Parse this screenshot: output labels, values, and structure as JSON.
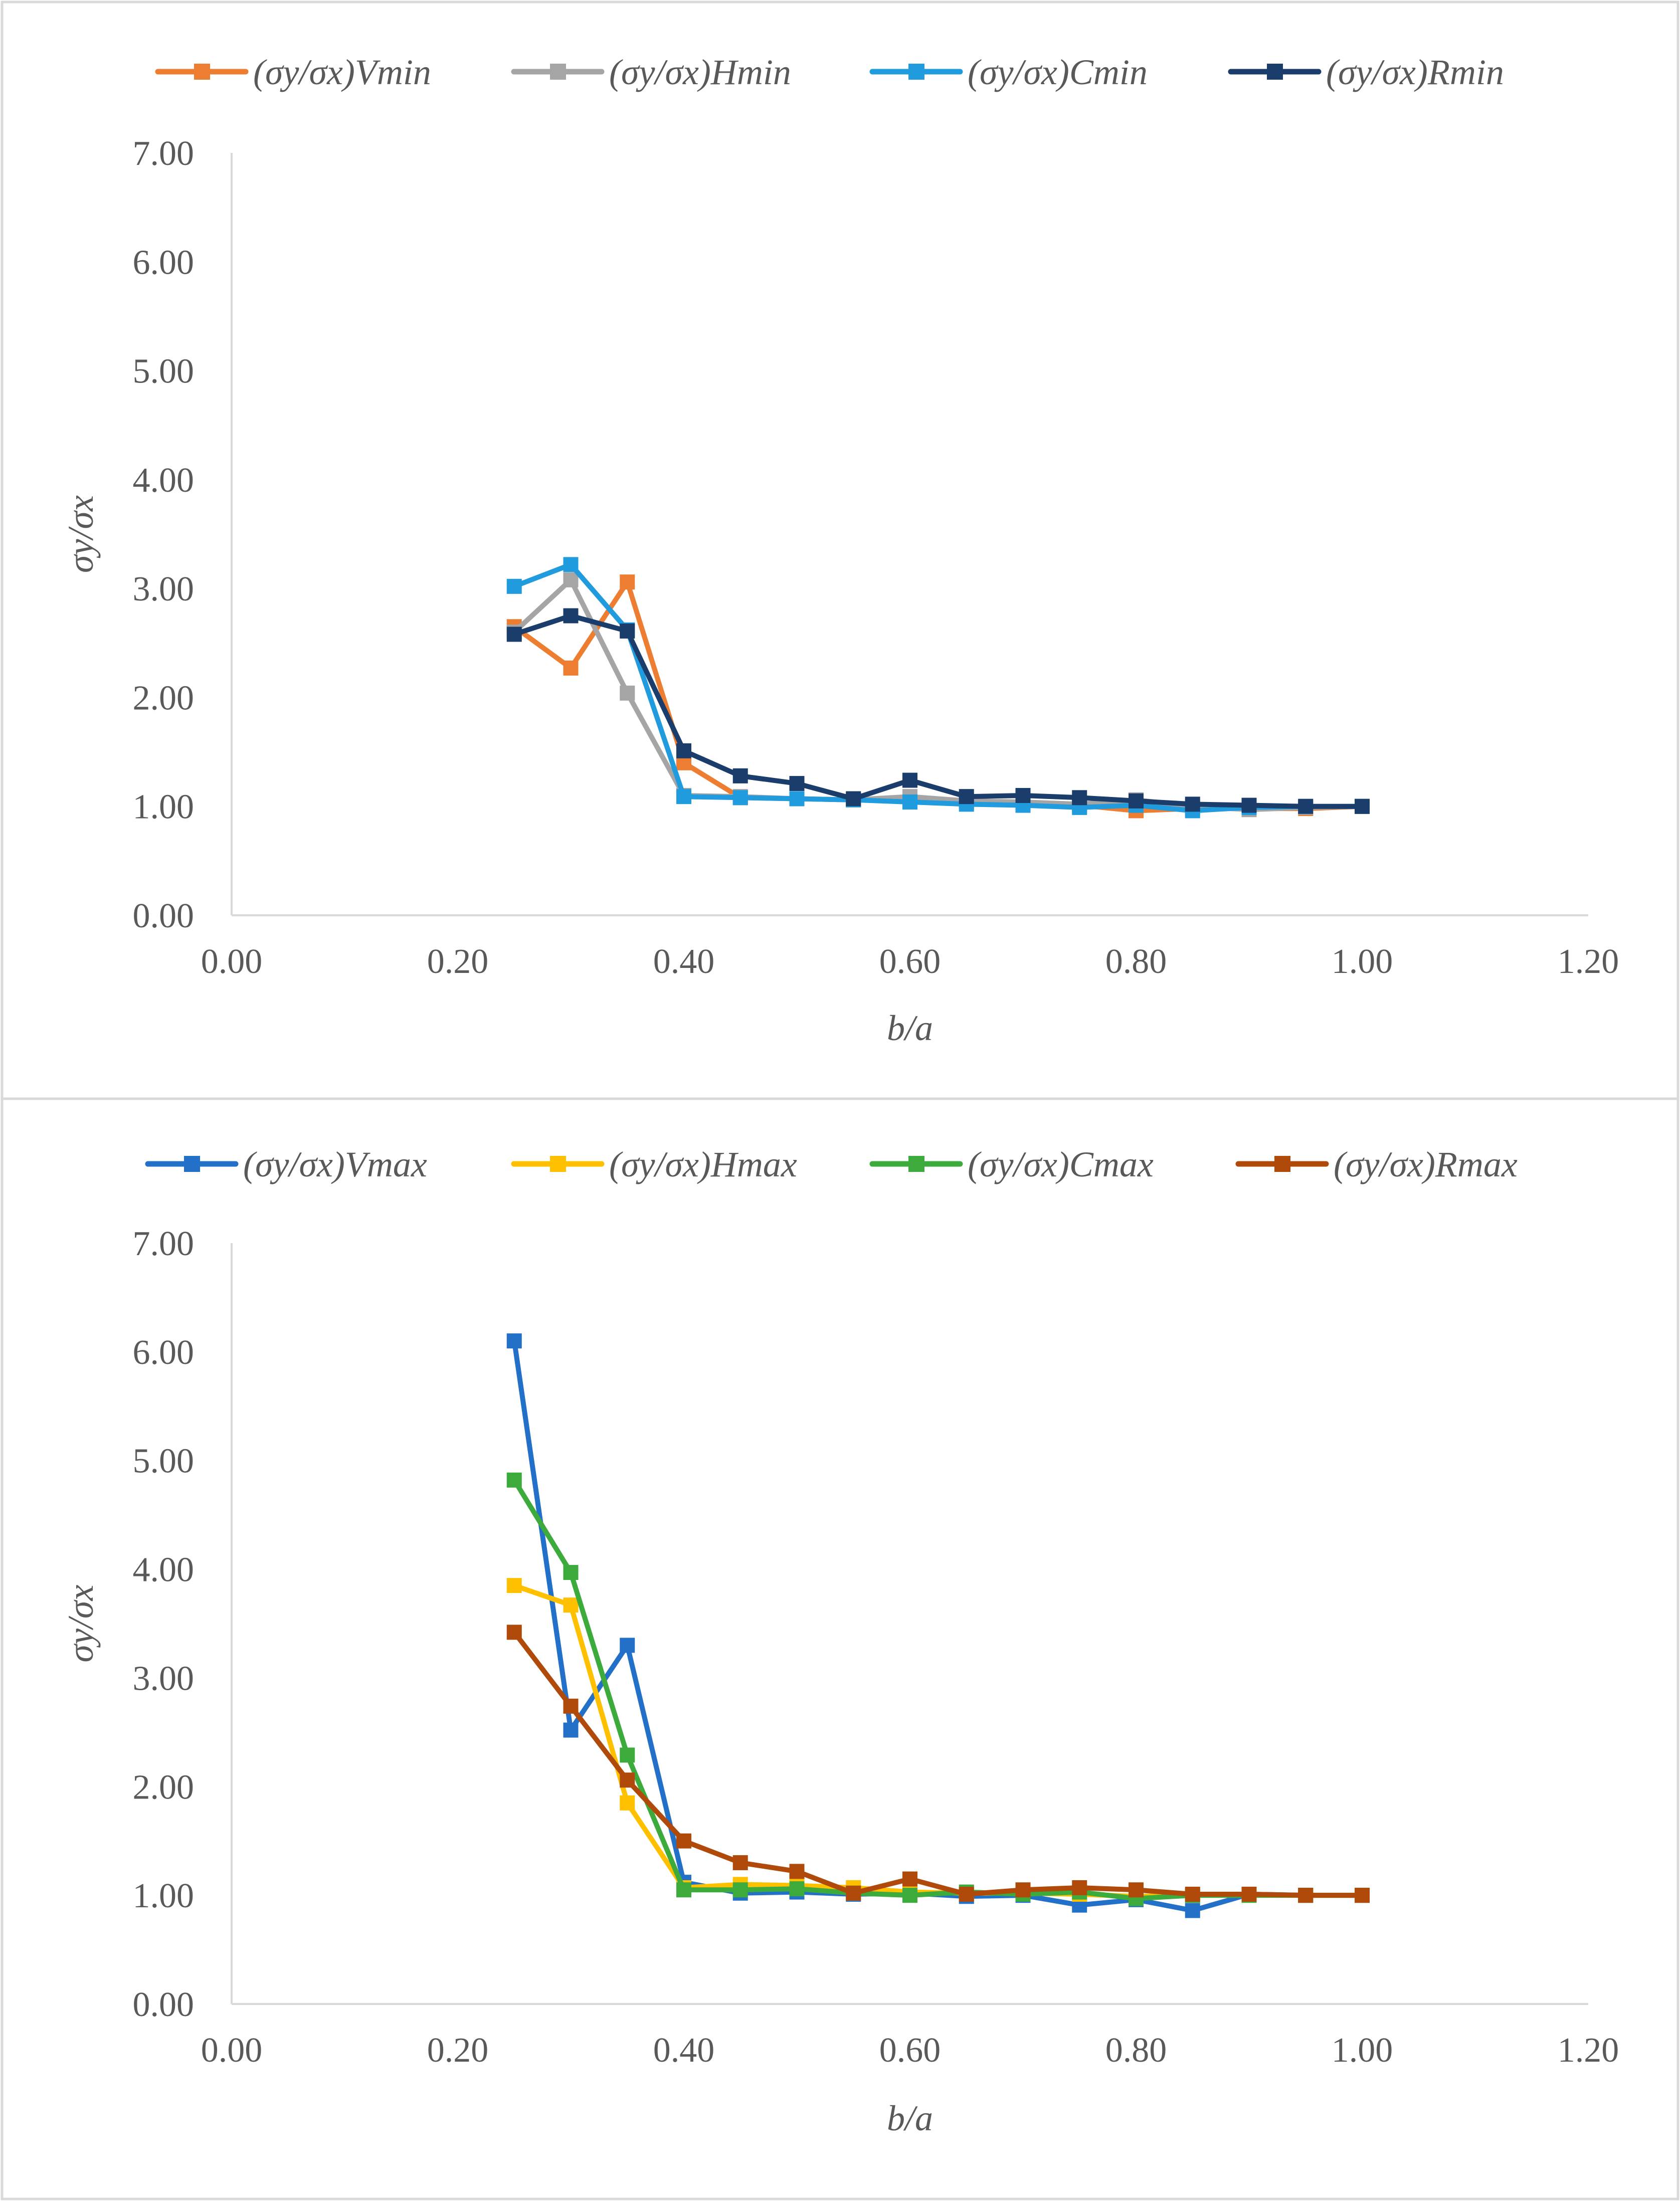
{
  "chart_data": [
    {
      "type": "line",
      "title": "",
      "xlabel": "b/a",
      "ylabel": "σy/σx",
      "xlim": [
        0,
        1.2
      ],
      "ylim": [
        0,
        7
      ],
      "xticks": [
        "0.00",
        "0.20",
        "0.40",
        "0.60",
        "0.80",
        "1.00",
        "1.20"
      ],
      "yticks": [
        "0.00",
        "1.00",
        "2.00",
        "3.00",
        "4.00",
        "5.00",
        "6.00",
        "7.00"
      ],
      "grid": false,
      "legend_position": "top",
      "x": [
        0.25,
        0.3,
        0.35,
        0.4,
        0.45,
        0.5,
        0.55,
        0.6,
        0.65,
        0.7,
        0.75,
        0.8,
        0.85,
        0.9,
        0.95,
        1.0
      ],
      "series": [
        {
          "name": "(σy/σx)Vmin",
          "color": "#ED7D31",
          "values": [
            2.65,
            2.27,
            3.06,
            1.4,
            1.08,
            1.07,
            1.06,
            1.06,
            1.04,
            1.03,
            1.01,
            0.96,
            0.98,
            0.98,
            0.98,
            1.0
          ]
        },
        {
          "name": "(σy/σx)Hmin",
          "color": "#A5A5A5",
          "values": [
            2.6,
            3.08,
            2.04,
            1.1,
            1.09,
            1.07,
            1.06,
            1.09,
            1.05,
            1.04,
            1.02,
            1.06,
            1.0,
            0.97,
            0.99,
            1.0
          ]
        },
        {
          "name": "(σy/σx)Cmin",
          "color": "#1F9BDE",
          "values": [
            3.02,
            3.22,
            2.62,
            1.09,
            1.08,
            1.07,
            1.06,
            1.04,
            1.02,
            1.01,
            0.99,
            1.01,
            0.96,
            0.99,
            1.0,
            1.0
          ]
        },
        {
          "name": "(σy/σx)Rmin",
          "color": "#1B3D6B",
          "values": [
            2.58,
            2.75,
            2.61,
            1.51,
            1.28,
            1.21,
            1.07,
            1.24,
            1.09,
            1.1,
            1.08,
            1.05,
            1.02,
            1.01,
            1.0,
            1.0
          ]
        }
      ]
    },
    {
      "type": "line",
      "title": "",
      "xlabel": "b/a",
      "ylabel": "σy/σx",
      "xlim": [
        0,
        1.2
      ],
      "ylim": [
        0,
        7
      ],
      "xticks": [
        "0.00",
        "0.20",
        "0.40",
        "0.60",
        "0.80",
        "1.00",
        "1.20"
      ],
      "yticks": [
        "0.00",
        "1.00",
        "2.00",
        "3.00",
        "4.00",
        "5.00",
        "6.00",
        "7.00"
      ],
      "grid": false,
      "legend_position": "top",
      "x": [
        0.25,
        0.3,
        0.35,
        0.4,
        0.45,
        0.5,
        0.55,
        0.6,
        0.65,
        0.7,
        0.75,
        0.8,
        0.85,
        0.9,
        0.95,
        1.0
      ],
      "series": [
        {
          "name": "(σy/σx)Vmax",
          "color": "#2270C7",
          "values": [
            6.1,
            2.52,
            3.3,
            1.12,
            1.02,
            1.03,
            1.01,
            1.02,
            0.99,
            1.0,
            0.91,
            0.96,
            0.86,
            1.01,
            1.0,
            1.0
          ]
        },
        {
          "name": "(σy/σx)Hmax",
          "color": "#FFC000",
          "values": [
            3.85,
            3.67,
            1.85,
            1.07,
            1.1,
            1.09,
            1.07,
            1.03,
            1.02,
            1.02,
            1.01,
            0.99,
            1.0,
            1.0,
            1.0,
            1.0
          ]
        },
        {
          "name": "(σy/σx)Cmax",
          "color": "#3CAB3C",
          "values": [
            4.82,
            3.97,
            2.29,
            1.05,
            1.05,
            1.06,
            1.02,
            1.0,
            1.03,
            1.01,
            1.03,
            0.97,
            1.0,
            1.0,
            1.0,
            1.0
          ]
        },
        {
          "name": "(σy/σx)Rmax",
          "color": "#B04A0A",
          "values": [
            3.42,
            2.74,
            2.06,
            1.5,
            1.3,
            1.22,
            1.02,
            1.15,
            1.01,
            1.05,
            1.07,
            1.05,
            1.01,
            1.01,
            1.0,
            1.0
          ]
        }
      ]
    }
  ]
}
